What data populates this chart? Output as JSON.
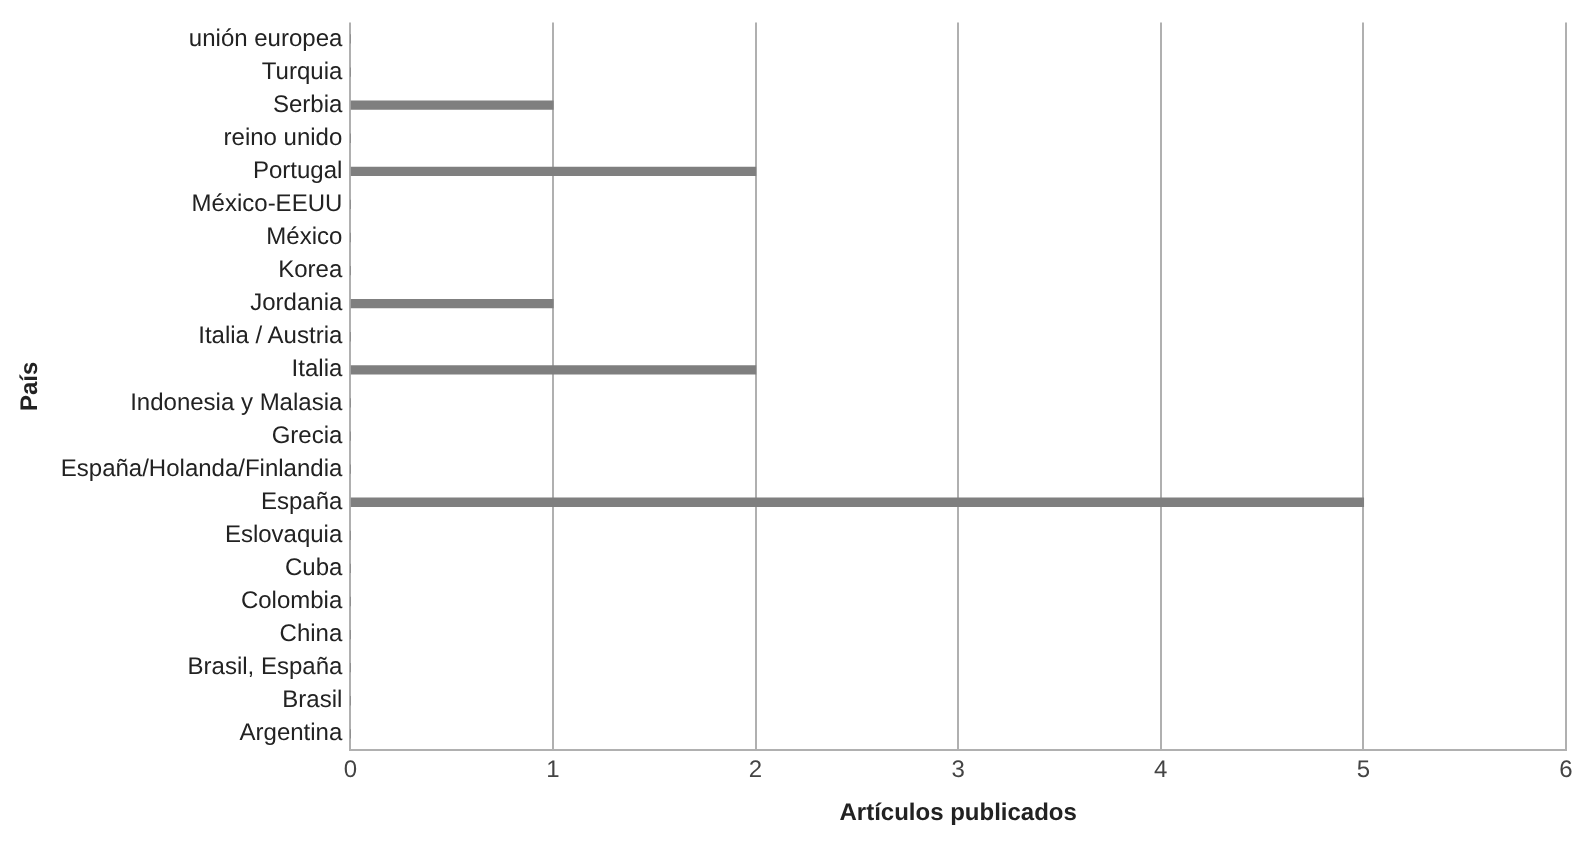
{
  "chart_data": {
    "type": "bar",
    "orientation": "horizontal",
    "xlabel": "Artículos publicados",
    "ylabel": "País",
    "categories": [
      "unión europea",
      "Turquia",
      "Serbia",
      "reino unido",
      "Portugal",
      "México-EEUU",
      "México",
      "Korea",
      "Jordania",
      "Italia / Austria",
      "Italia",
      "Indonesia y Malasia",
      "Grecia",
      "España/Holanda/Finlandia",
      "España",
      "Eslovaquia",
      "Cuba",
      "Colombia",
      "China",
      "Brasil, España",
      "Brasil",
      "Argentina"
    ],
    "values": [
      0,
      0,
      1,
      0,
      2,
      0,
      0,
      0,
      1,
      0,
      2,
      0,
      0,
      0,
      5,
      0,
      0,
      0,
      0,
      0,
      0,
      0
    ],
    "color": "#7f7f7f",
    "xlim": [
      0,
      6
    ],
    "xticks": [
      0,
      1,
      2,
      3,
      4,
      5,
      6
    ],
    "grid": "x",
    "legend": false
  }
}
